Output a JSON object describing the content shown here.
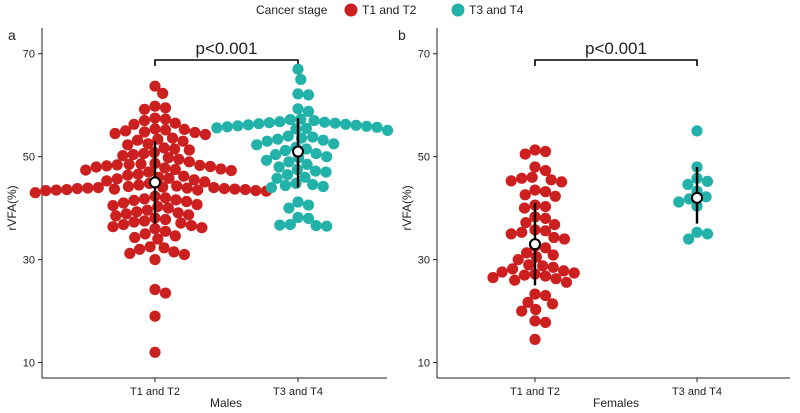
{
  "legend": {
    "title": "Cancer stage",
    "entries": [
      {
        "label": "T1 and T2",
        "color": "#CC1F1F"
      },
      {
        "label": "T3 and T4",
        "color": "#22B2AA"
      }
    ]
  },
  "chart_data": [
    {
      "type": "scatter",
      "subtype": "beeswarm",
      "panel_label": "a",
      "xlabel": "Males",
      "ylabel": "rVFA(%)",
      "ylim": [
        7,
        75
      ],
      "yticks": [
        10,
        30,
        50,
        70
      ],
      "categories": [
        "T1 and T2",
        "T3 and T4"
      ],
      "significance": "p<0.001",
      "series": [
        {
          "name": "T1 and T2",
          "color": "#CC1F1F",
          "mean": 45,
          "sd": [
            37,
            53
          ],
          "values": [
            63.7,
            62.3,
            59.8,
            59.5,
            59.2,
            57.5,
            57.3,
            57.0,
            56.5,
            56.3,
            55.4,
            55.3,
            55.2,
            55.0,
            54.8,
            54.7,
            54.5,
            54.3,
            53.6,
            53.4,
            53.2,
            53.0,
            52.5,
            52.3,
            51.7,
            51.5,
            51.3,
            50.8,
            50.6,
            50.4,
            50.2,
            49.8,
            49.5,
            49.0,
            48.7,
            48.6,
            48.5,
            48.4,
            48.3,
            48.2,
            48.1,
            48.0,
            47.8,
            47.6,
            47.5,
            47.4,
            47.3,
            47.0,
            46.6,
            46.4,
            46.2,
            46.0,
            45.8,
            45.7,
            45.5,
            45.3,
            45.1,
            44.8,
            44.5,
            44.3,
            44.2,
            44.1,
            44.0,
            44.0,
            43.9,
            43.9,
            43.8,
            43.8,
            43.7,
            43.7,
            43.6,
            43.6,
            43.5,
            43.5,
            43.4,
            43.4,
            43.3,
            43.0,
            42.3,
            42.0,
            41.8,
            41.6,
            41.5,
            41.3,
            41.0,
            40.7,
            40.5,
            40.3,
            40.0,
            39.6,
            39.3,
            39.1,
            38.9,
            38.7,
            38.5,
            38.1,
            37.8,
            37.5,
            37.3,
            37.1,
            36.8,
            36.6,
            36.4,
            36.2,
            36.0,
            35.5,
            35.0,
            34.6,
            34.3,
            34.0,
            32.5,
            32.3,
            32.0,
            31.5,
            31.2,
            31.0,
            30.0,
            24.2,
            23.5,
            19.0,
            12.0
          ]
        },
        {
          "name": "T3 and T4",
          "color": "#22B2AA",
          "mean": 51,
          "sd": [
            44,
            57.5
          ],
          "values": [
            67.0,
            65.0,
            62.2,
            62.0,
            59.3,
            58.8,
            57.3,
            57.2,
            57.0,
            56.8,
            56.7,
            56.6,
            56.5,
            56.4,
            56.3,
            56.2,
            56.1,
            56.0,
            55.9,
            55.8,
            55.7,
            55.6,
            55.5,
            55.4,
            55.1,
            54.0,
            53.8,
            53.6,
            53.4,
            53.2,
            53.0,
            52.5,
            52.3,
            51.8,
            51.5,
            51.2,
            50.6,
            50.4,
            50.0,
            49.8,
            49.3,
            49.0,
            48.5,
            48.0,
            47.5,
            47.2,
            47.0,
            46.5,
            46.0,
            45.8,
            44.8,
            44.6,
            44.4,
            44.2,
            44.0,
            41.2,
            40.6,
            40.0,
            38.2,
            38.0,
            36.8,
            36.7,
            36.6,
            36.5
          ]
        }
      ]
    },
    {
      "type": "scatter",
      "subtype": "beeswarm",
      "panel_label": "b",
      "xlabel": "Females",
      "ylabel": "rVFA(%)",
      "ylim": [
        7,
        75
      ],
      "yticks": [
        10,
        30,
        50,
        70
      ],
      "categories": [
        "T1 and T2",
        "T3 and T4"
      ],
      "significance": "p<0.001",
      "series": [
        {
          "name": "T1 and T2",
          "color": "#CC1F1F",
          "mean": 33,
          "sd": [
            25,
            41
          ],
          "values": [
            51.3,
            51.0,
            50.5,
            48.0,
            47.3,
            46.0,
            45.8,
            45.5,
            45.3,
            45.1,
            43.5,
            43.2,
            42.6,
            42.3,
            40.6,
            40.3,
            40.0,
            38.3,
            38.0,
            37.2,
            36.8,
            35.8,
            35.6,
            35.3,
            35.0,
            34.3,
            34.0,
            32.6,
            32.3,
            31.3,
            30.9,
            30.5,
            30.0,
            29.0,
            28.8,
            28.5,
            28.2,
            27.8,
            27.6,
            27.4,
            27.2,
            27.0,
            26.8,
            26.5,
            26.3,
            26.0,
            25.6,
            23.3,
            23.0,
            21.7,
            21.4,
            20.3,
            20.0,
            18.1,
            17.8,
            14.5
          ]
        },
        {
          "name": "T3 and T4",
          "color": "#22B2AA",
          "mean": 42,
          "sd": [
            37,
            48
          ],
          "values": [
            55.0,
            48.0,
            45.8,
            45.2,
            44.6,
            43.3,
            42.2,
            41.8,
            41.2,
            40.4,
            35.3,
            35.0,
            34.0
          ]
        }
      ]
    }
  ]
}
